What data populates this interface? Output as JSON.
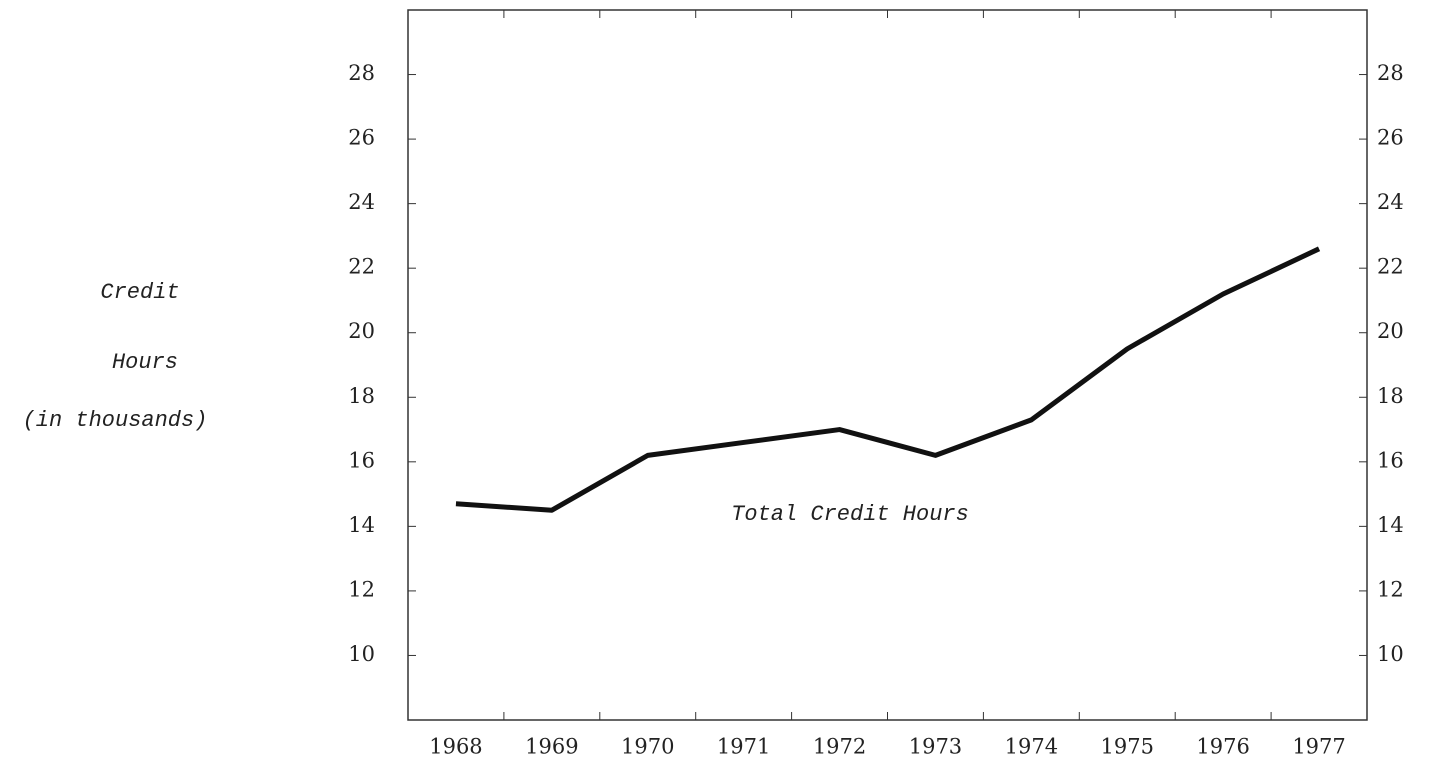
{
  "chart_data": {
    "type": "line",
    "y_label": [
      "Credit",
      "Hours",
      "(in thousands)"
    ],
    "annotation": "Total Credit Hours",
    "categories": [
      "1968",
      "1969",
      "1970",
      "1971",
      "1972",
      "1973",
      "1974",
      "1975",
      "1976",
      "1977"
    ],
    "series": [
      {
        "name": "Total Credit Hours",
        "color": "#111111",
        "values": [
          14.7,
          14.5,
          16.2,
          16.6,
          17.0,
          16.2,
          17.3,
          19.5,
          21.2,
          22.6
        ]
      }
    ],
    "ylim": [
      8,
      30
    ],
    "yticks": [
      10,
      12,
      14,
      16,
      18,
      20,
      22,
      24,
      26,
      28
    ],
    "y2lim": [
      8,
      30
    ],
    "y2ticks": [
      10,
      12,
      14,
      16,
      18,
      20,
      22,
      24,
      26,
      28
    ]
  }
}
